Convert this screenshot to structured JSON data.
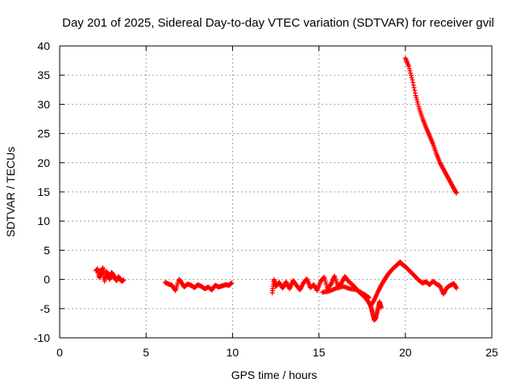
{
  "chart_data": {
    "type": "scatter",
    "title": "Day 201 of 2025, Sidereal Day-to-day VTEC variation (SDTVAR) for receiver gvil",
    "xlabel": "GPS time / hours",
    "ylabel": "SDTVAR / TECUs",
    "xlim": [
      0,
      25
    ],
    "ylim": [
      -10,
      40
    ],
    "xticks": [
      0,
      5,
      10,
      15,
      20,
      25
    ],
    "yticks": [
      -10,
      -5,
      0,
      5,
      10,
      15,
      20,
      25,
      30,
      35,
      40
    ],
    "grid": true,
    "marker": "+",
    "color": "#ff0000",
    "series": [
      {
        "name": "segment-1",
        "x": [
          2.1,
          2.2,
          2.3,
          2.4,
          2.5,
          2.6,
          2.7,
          2.8,
          2.9,
          3.0,
          3.1,
          3.2,
          3.3,
          3.4,
          3.5,
          3.6,
          3.7
        ],
        "y": [
          1.5,
          1.8,
          0.3,
          1.0,
          2.0,
          -0.3,
          1.4,
          0.6,
          0.0,
          1.2,
          0.8,
          0.2,
          -0.2,
          0.5,
          0.0,
          -0.3,
          -0.1
        ]
      },
      {
        "name": "segment-2",
        "x": [
          6.1,
          6.3,
          6.5,
          6.7,
          6.9,
          7.0,
          7.2,
          7.4,
          7.6,
          7.8,
          8.0,
          8.2,
          8.4,
          8.6,
          8.8,
          9.0,
          9.2,
          9.4,
          9.6,
          9.8,
          9.95
        ],
        "y": [
          -0.5,
          -0.8,
          -1.0,
          -1.9,
          0.0,
          -0.3,
          -1.3,
          -0.8,
          -1.0,
          -1.4,
          -0.9,
          -1.2,
          -1.6,
          -1.3,
          -1.8,
          -1.0,
          -1.3,
          -1.1,
          -0.9,
          -1.0,
          -0.6
        ]
      },
      {
        "name": "segment-3",
        "x": [
          12.3,
          12.4,
          12.5,
          12.7,
          12.9,
          13.1,
          13.3,
          13.5,
          13.7,
          13.9,
          14.1,
          14.3,
          14.5,
          14.7,
          14.9,
          15.1,
          15.3,
          15.5,
          15.7,
          15.9,
          16.1,
          16.3,
          16.5,
          16.7,
          16.9,
          17.1,
          17.3,
          17.5,
          17.7,
          17.9,
          18.0,
          18.1,
          18.2,
          18.3,
          18.4,
          18.5,
          18.6
        ],
        "y": [
          -2.3,
          0.0,
          -1.2,
          -0.5,
          -1.5,
          -0.4,
          -1.6,
          -0.2,
          -1.0,
          -1.8,
          -0.6,
          0.1,
          -1.4,
          -0.9,
          -1.9,
          -0.3,
          0.4,
          -1.6,
          -0.8,
          0.6,
          -1.2,
          -0.6,
          0.5,
          -0.3,
          -0.8,
          -1.4,
          -2.1,
          -2.6,
          -3.2,
          -4.0,
          -4.6,
          -5.8,
          -7.0,
          -6.5,
          -5.2,
          -3.8,
          -4.8
        ]
      },
      {
        "name": "segment-3b",
        "x": [
          15.2,
          15.6,
          16.0,
          16.4,
          16.8,
          17.2,
          17.6,
          17.9
        ],
        "y": [
          -2.2,
          -2.0,
          -1.5,
          -1.2,
          -1.6,
          -1.8,
          -2.5,
          -3.1
        ]
      },
      {
        "name": "segment-4",
        "x": [
          18.0,
          18.2,
          18.4,
          18.6,
          18.8,
          19.0,
          19.2,
          19.4,
          19.6,
          19.7,
          19.8,
          20.0,
          20.2,
          20.4,
          20.6,
          20.8,
          21.0,
          21.2,
          21.4,
          21.6,
          21.8,
          22.0,
          22.2,
          22.4,
          22.6,
          22.8,
          22.95
        ],
        "y": [
          -4.5,
          -3.5,
          -2.2,
          -1.0,
          0.0,
          0.9,
          1.6,
          2.2,
          2.7,
          3.0,
          2.6,
          2.2,
          1.6,
          1.0,
          0.4,
          -0.2,
          -0.6,
          -0.4,
          -0.9,
          -0.3,
          -0.8,
          -1.1,
          -2.5,
          -1.4,
          -1.0,
          -0.7,
          -1.5
        ]
      },
      {
        "name": "segment-5",
        "x": [
          20.0,
          20.2,
          20.4,
          20.6,
          20.8,
          21.0,
          21.2,
          21.4,
          21.6,
          21.8,
          22.0,
          22.2,
          22.4,
          22.6,
          22.8,
          22.95
        ],
        "y": [
          37.9,
          36.5,
          34.2,
          31.5,
          29.3,
          27.5,
          26.0,
          24.6,
          23.2,
          21.5,
          20.0,
          18.9,
          17.8,
          16.7,
          15.6,
          14.8
        ]
      }
    ]
  }
}
